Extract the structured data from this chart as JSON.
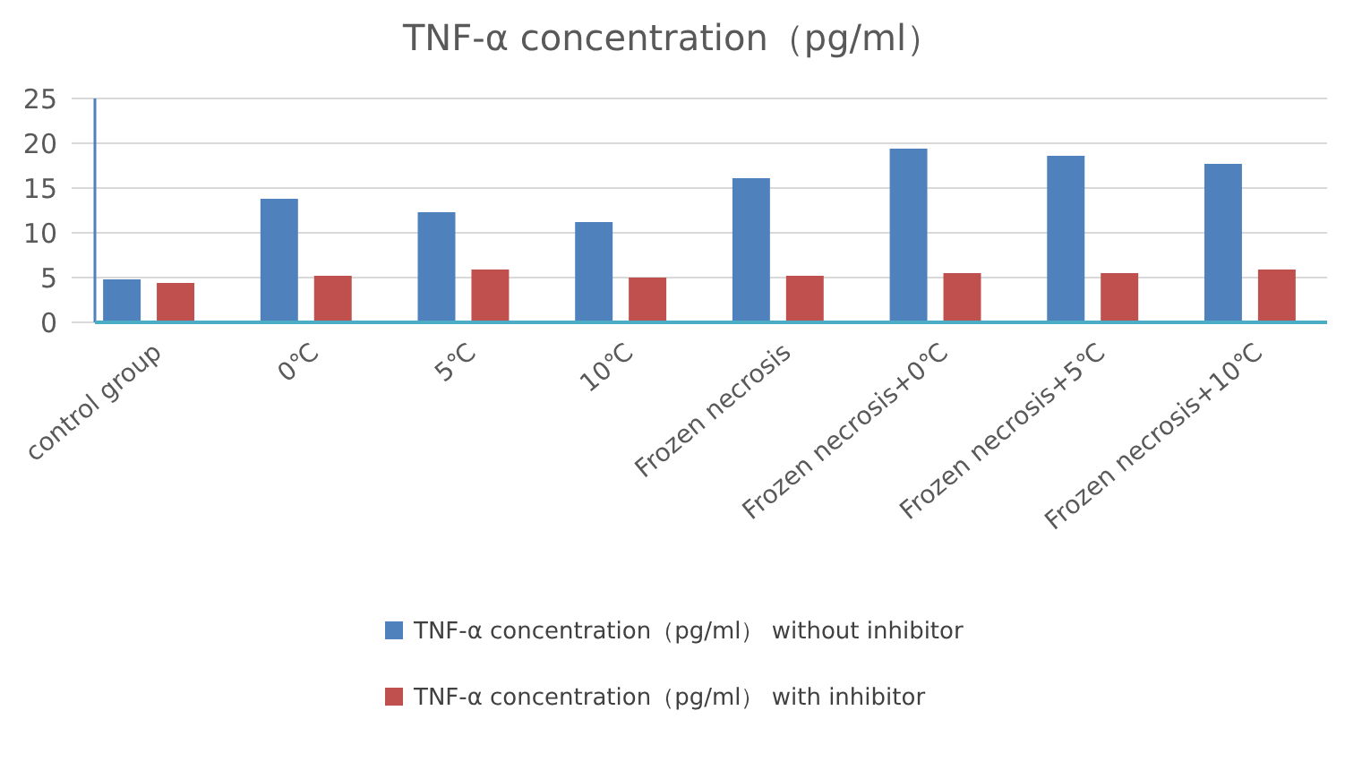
{
  "chart_data": {
    "type": "bar",
    "title": "TNF-α concentration（pg/ml）",
    "categories": [
      "control group",
      "0℃",
      "5℃",
      "10℃",
      "Frozen necrosis",
      "Frozen necrosis+0℃",
      "Frozen necrosis+5℃",
      "Frozen necrosis+10℃"
    ],
    "series": [
      {
        "name": "TNF-α concentration（pg/ml） without inhibitor",
        "color": "#4f81bd",
        "values": [
          4.8,
          13.8,
          12.3,
          11.2,
          16.1,
          19.4,
          18.6,
          17.7
        ]
      },
      {
        "name": "TNF-α concentration（pg/ml） with inhibitor",
        "color": "#c0504d",
        "values": [
          4.4,
          5.2,
          5.9,
          5.0,
          5.2,
          5.5,
          5.5,
          5.9
        ]
      }
    ],
    "ylim": [
      0,
      25
    ],
    "yticks": [
      0,
      5,
      10,
      15,
      20,
      25
    ],
    "grid": "y",
    "legend": "bottom"
  }
}
